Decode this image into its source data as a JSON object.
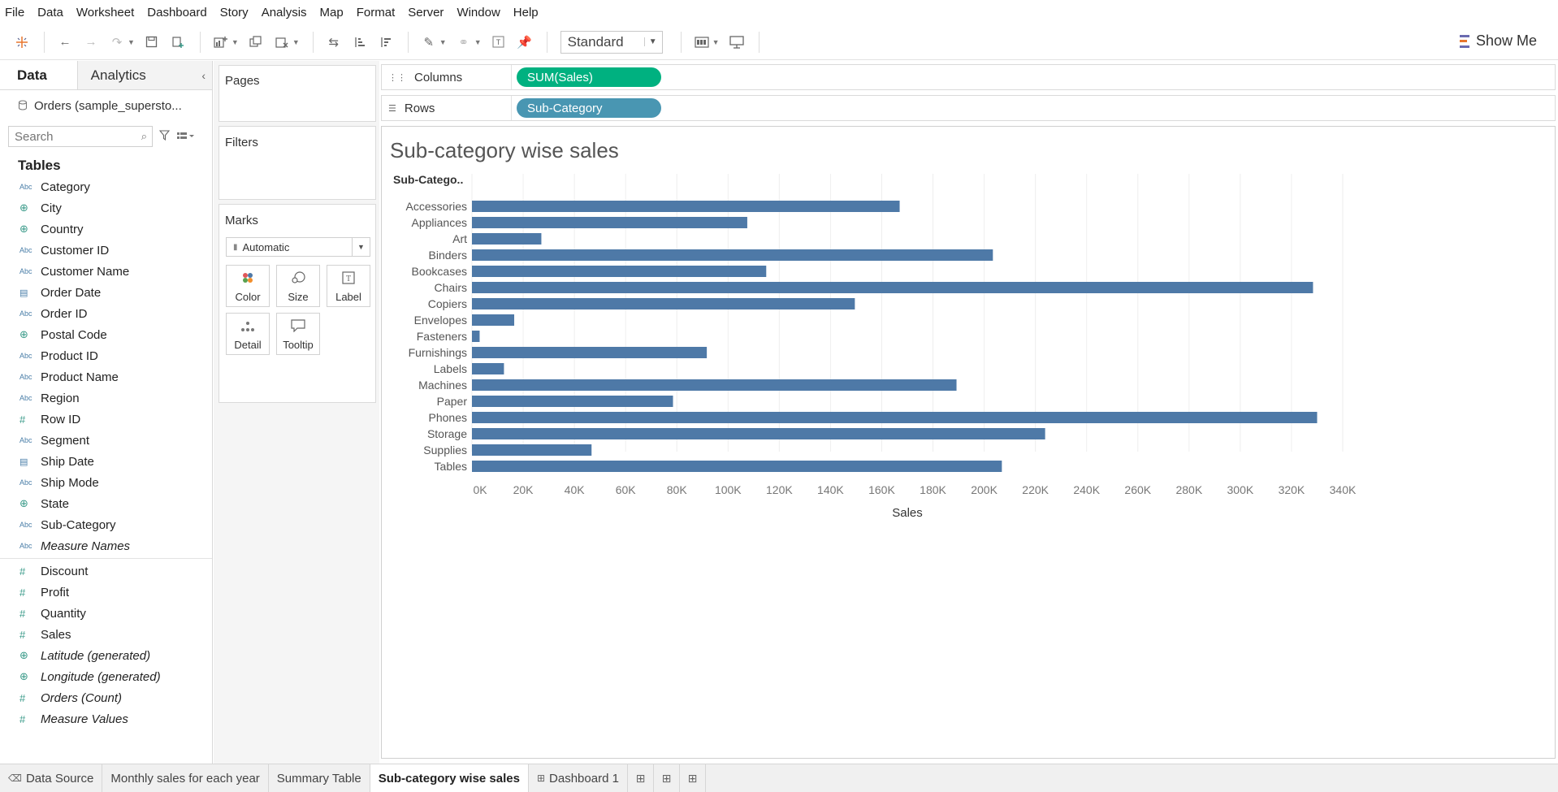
{
  "menu": [
    "File",
    "Data",
    "Worksheet",
    "Dashboard",
    "Story",
    "Analysis",
    "Map",
    "Format",
    "Server",
    "Window",
    "Help"
  ],
  "toolbar": {
    "fit_value": "Standard",
    "show_me_label": "Show Me"
  },
  "data_pane": {
    "tabs": [
      "Data",
      "Analytics"
    ],
    "datasource": "Orders (sample_supersto...",
    "search_placeholder": "Search",
    "tables_label": "Tables",
    "dimensions": [
      {
        "name": "Category",
        "icon": "Abc"
      },
      {
        "name": "City",
        "icon": "globe"
      },
      {
        "name": "Country",
        "icon": "globe"
      },
      {
        "name": "Customer ID",
        "icon": "Abc"
      },
      {
        "name": "Customer Name",
        "icon": "Abc"
      },
      {
        "name": "Order Date",
        "icon": "calendar"
      },
      {
        "name": "Order ID",
        "icon": "Abc"
      },
      {
        "name": "Postal Code",
        "icon": "globe"
      },
      {
        "name": "Product ID",
        "icon": "Abc"
      },
      {
        "name": "Product Name",
        "icon": "Abc"
      },
      {
        "name": "Region",
        "icon": "Abc"
      },
      {
        "name": "Row ID",
        "icon": "hash"
      },
      {
        "name": "Segment",
        "icon": "Abc"
      },
      {
        "name": "Ship Date",
        "icon": "calendar"
      },
      {
        "name": "Ship Mode",
        "icon": "Abc"
      },
      {
        "name": "State",
        "icon": "globe"
      },
      {
        "name": "Sub-Category",
        "icon": "Abc"
      },
      {
        "name": "Measure Names",
        "icon": "Abc"
      }
    ],
    "measures": [
      {
        "name": "Discount",
        "icon": "hash"
      },
      {
        "name": "Profit",
        "icon": "hash"
      },
      {
        "name": "Quantity",
        "icon": "hash"
      },
      {
        "name": "Sales",
        "icon": "hash"
      },
      {
        "name": "Latitude (generated)",
        "icon": "globe"
      },
      {
        "name": "Longitude (generated)",
        "icon": "globe"
      },
      {
        "name": "Orders (Count)",
        "icon": "hash"
      },
      {
        "name": "Measure Values",
        "icon": "hash"
      }
    ]
  },
  "cards": {
    "pages": "Pages",
    "filters": "Filters",
    "marks": "Marks",
    "marks_type": "Automatic",
    "mark_buttons": [
      "Color",
      "Size",
      "Label",
      "Detail",
      "Tooltip"
    ]
  },
  "shelves": {
    "columns_label": "Columns",
    "columns_pill": "SUM(Sales)",
    "rows_label": "Rows",
    "rows_pill": "Sub-Category"
  },
  "sheet_title": "Sub-category wise sales",
  "chart_data": {
    "type": "bar",
    "orientation": "horizontal",
    "title": "Sub-category wise sales",
    "row_header": "Sub-Catego..",
    "xlabel": "Sales",
    "xlim": [
      0,
      340000
    ],
    "x_ticks": [
      "0K",
      "20K",
      "40K",
      "60K",
      "80K",
      "100K",
      "120K",
      "140K",
      "160K",
      "180K",
      "200K",
      "220K",
      "240K",
      "260K",
      "280K",
      "300K",
      "320K",
      "340K"
    ],
    "categories": [
      "Accessories",
      "Appliances",
      "Art",
      "Binders",
      "Bookcases",
      "Chairs",
      "Copiers",
      "Envelopes",
      "Fasteners",
      "Furnishings",
      "Labels",
      "Machines",
      "Paper",
      "Phones",
      "Storage",
      "Supplies",
      "Tables"
    ],
    "values": [
      167000,
      107500,
      27100,
      203400,
      114900,
      328400,
      149500,
      16500,
      3000,
      91700,
      12500,
      189200,
      78500,
      330000,
      223800,
      46700,
      206900
    ],
    "bar_color": "#4e79a7",
    "grid": "vertical"
  },
  "bottom_tabs": {
    "data_source": "Data Source",
    "sheets": [
      "Monthly sales for each year",
      "Summary Table",
      "Sub-category wise sales",
      "Dashboard 1"
    ],
    "active": "Sub-category wise sales"
  }
}
